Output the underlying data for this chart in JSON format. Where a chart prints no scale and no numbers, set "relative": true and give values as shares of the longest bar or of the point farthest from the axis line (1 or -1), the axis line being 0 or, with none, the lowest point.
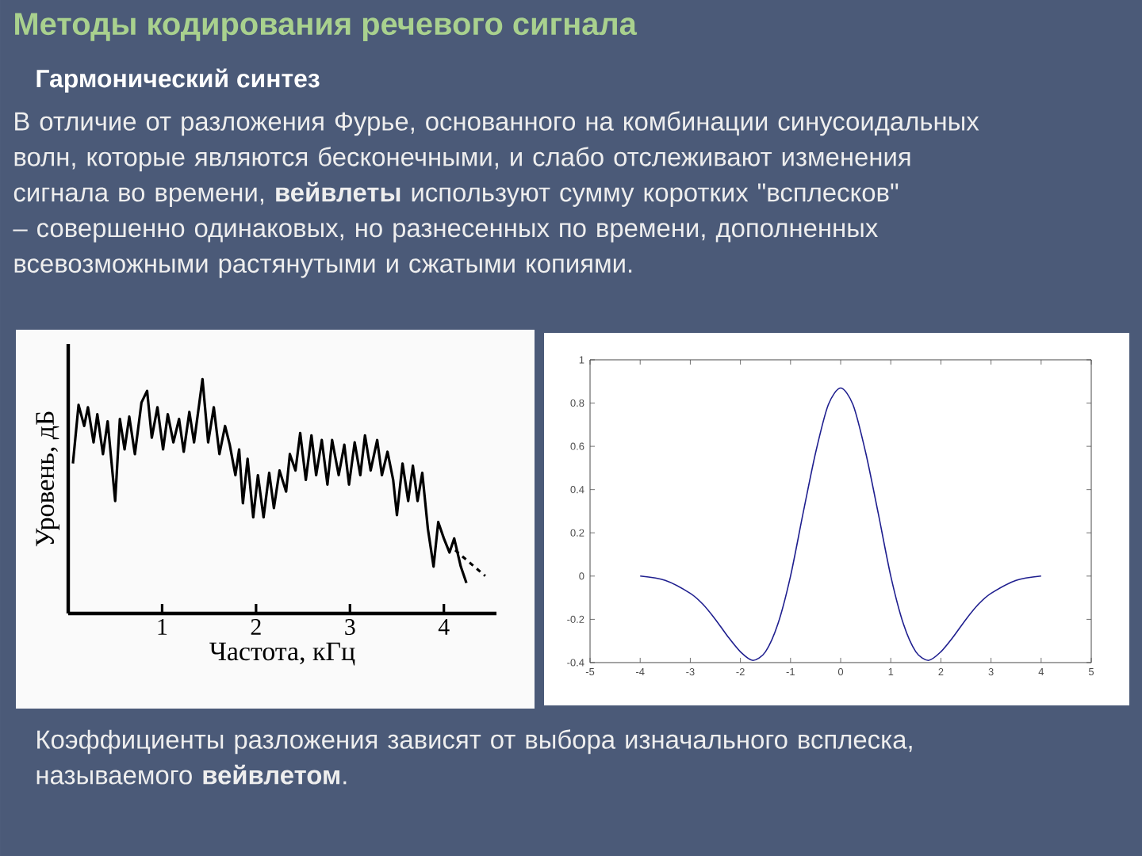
{
  "chart_data": [
    {
      "type": "other",
      "title": "Методы кодирования речевого сигнала",
      "subtitle": "Гармонический синтез",
      "annotations": [
        "В отличие от разложения Фурье, основанного на комбинации синусоидальных волн, которые являются бесконечными, и слабо отслеживают изменения сигнала во времени, **вейвлеты** используют сумму коротких \"всплесков\" – совершенно одинаковых, но разнесенных по времени, дополненных всевозможными растянутыми и сжатыми копиями.",
        "Коэффициенты разложения зависят от выбора изначального всплеска, называемого **вейвлетом**."
      ]
    },
    {
      "type": "line",
      "relative": true,
      "xlabel": "Частота, кГц",
      "ylabel": "Уровень, дБ",
      "tick_labels": "x",
      "xlim": [
        0,
        4.56
      ],
      "xticks": [
        1,
        2,
        3,
        4
      ],
      "series": [
        {
          "color": "#000000",
          "x": [
            0.05,
            0.11,
            0.17,
            0.21,
            0.27,
            0.31,
            0.37,
            0.42,
            0.5,
            0.55,
            0.6,
            0.65,
            0.71,
            0.78,
            0.84,
            0.89,
            0.95,
            1.01,
            1.06,
            1.12,
            1.18,
            1.23,
            1.29,
            1.34,
            1.43,
            1.49,
            1.55,
            1.61,
            1.67,
            1.72,
            1.78,
            1.82,
            1.86,
            1.91,
            1.97,
            2.02,
            2.08,
            2.14,
            2.19,
            2.25,
            2.32,
            2.36,
            2.42,
            2.47,
            2.53,
            2.59,
            2.64,
            2.7,
            2.76,
            2.81,
            2.88,
            2.94,
            2.99,
            3.05,
            3.11,
            3.16,
            3.22,
            3.29,
            3.34,
            3.4,
            3.46,
            3.5,
            3.56,
            3.62,
            3.67,
            3.72,
            3.77,
            3.83,
            3.89,
            3.94,
            4.0,
            4.06,
            4.11,
            4.18,
            4.24
          ],
          "values": [
            0.64,
            0.89,
            0.8,
            0.88,
            0.73,
            0.85,
            0.68,
            0.82,
            0.48,
            0.83,
            0.7,
            0.84,
            0.68,
            0.9,
            0.95,
            0.75,
            0.88,
            0.7,
            0.85,
            0.73,
            0.83,
            0.69,
            0.86,
            0.73,
            1.0,
            0.73,
            0.88,
            0.68,
            0.8,
            0.72,
            0.59,
            0.7,
            0.47,
            0.66,
            0.41,
            0.59,
            0.41,
            0.6,
            0.45,
            0.61,
            0.52,
            0.68,
            0.61,
            0.77,
            0.57,
            0.76,
            0.59,
            0.74,
            0.55,
            0.74,
            0.59,
            0.72,
            0.55,
            0.73,
            0.59,
            0.76,
            0.61,
            0.74,
            0.59,
            0.69,
            0.57,
            0.42,
            0.64,
            0.48,
            0.63,
            0.48,
            0.6,
            0.36,
            0.2,
            0.39,
            0.32,
            0.26,
            0.32,
            0.2,
            0.13
          ]
        },
        {
          "color": "#000000",
          "line_style": "dashed",
          "x": [
            4.12,
            4.44
          ],
          "values": [
            0.27,
            0.16
          ]
        }
      ]
    },
    {
      "type": "line",
      "color": "#1f1f8f",
      "xlim": [
        -5,
        5
      ],
      "ylim": [
        -0.4,
        1
      ],
      "xticks": [
        -5,
        -4,
        -3,
        -2,
        -1,
        0,
        1,
        2,
        3,
        4,
        5
      ],
      "yticks": [
        -0.4,
        -0.2,
        0,
        0.2,
        0.4,
        0.6,
        0.8,
        1
      ],
      "x": [
        -4,
        -3.5,
        -3,
        -2.75,
        -2.5,
        -2.25,
        -2,
        -1.75,
        -1.5,
        -1.25,
        -1,
        -0.75,
        -0.5,
        -0.25,
        0,
        0.25,
        0.5,
        0.75,
        1,
        1.25,
        1.5,
        1.75,
        2,
        2.25,
        2.5,
        2.75,
        3,
        3.5,
        4
      ],
      "values": [
        0,
        -0.02,
        -0.08,
        -0.13,
        -0.2,
        -0.28,
        -0.35,
        -0.39,
        -0.35,
        -0.22,
        0,
        0.29,
        0.57,
        0.79,
        0.87,
        0.79,
        0.57,
        0.29,
        0,
        -0.22,
        -0.35,
        -0.39,
        -0.35,
        -0.28,
        -0.2,
        -0.13,
        -0.08,
        -0.02,
        0
      ]
    }
  ]
}
